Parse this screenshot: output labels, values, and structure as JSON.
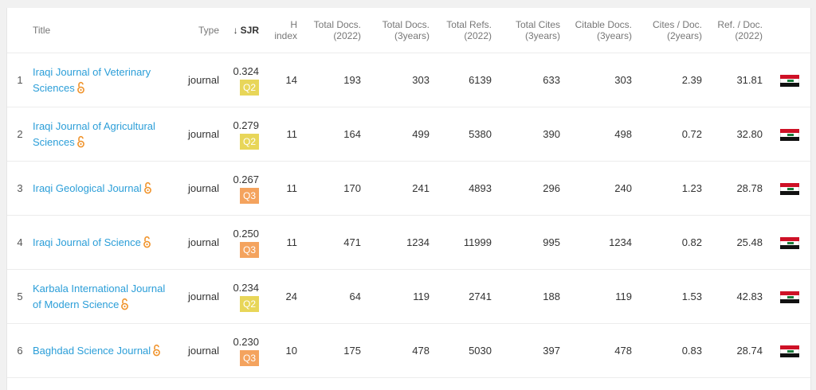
{
  "table": {
    "headers": {
      "title": "Title",
      "type": "Type",
      "sjr_arrow": "↓",
      "sjr": "SJR",
      "h_index": [
        "H",
        "index"
      ],
      "total_docs_2022": [
        "Total Docs.",
        "(2022)"
      ],
      "total_docs_3y": [
        "Total Docs.",
        "(3years)"
      ],
      "total_refs_2022": [
        "Total Refs.",
        "(2022)"
      ],
      "total_cites_3y": [
        "Total Cites",
        "(3years)"
      ],
      "citable_docs_3y": [
        "Citable Docs.",
        "(3years)"
      ],
      "cites_per_doc_2y": [
        "Cites / Doc.",
        "(2years)"
      ],
      "refs_per_doc_2022": [
        "Ref. / Doc.",
        "(2022)"
      ]
    },
    "rows": [
      {
        "rank": "1",
        "title_lines": [
          "Iraqi Journal of Veterinary",
          "Sciences"
        ],
        "type": "journal",
        "sjr": "0.324",
        "quartile": "Q2",
        "h_index": "14",
        "total_docs_2022": "193",
        "total_docs_3y": "303",
        "total_refs": "6139",
        "total_cites": "633",
        "citable_docs": "303",
        "cites_per_doc": "2.39",
        "refs_per_doc": "31.81",
        "flag": "iraq-flag-icon"
      },
      {
        "rank": "2",
        "title_lines": [
          "Iraqi Journal of Agricultural",
          "Sciences"
        ],
        "type": "journal",
        "sjr": "0.279",
        "quartile": "Q2",
        "h_index": "11",
        "total_docs_2022": "164",
        "total_docs_3y": "499",
        "total_refs": "5380",
        "total_cites": "390",
        "citable_docs": "498",
        "cites_per_doc": "0.72",
        "refs_per_doc": "32.80",
        "flag": "iraq-flag-icon"
      },
      {
        "rank": "3",
        "title_lines": [
          "Iraqi Geological Journal"
        ],
        "type": "journal",
        "sjr": "0.267",
        "quartile": "Q3",
        "h_index": "11",
        "total_docs_2022": "170",
        "total_docs_3y": "241",
        "total_refs": "4893",
        "total_cites": "296",
        "citable_docs": "240",
        "cites_per_doc": "1.23",
        "refs_per_doc": "28.78",
        "flag": "iraq-flag-icon"
      },
      {
        "rank": "4",
        "title_lines": [
          "Iraqi Journal of Science"
        ],
        "type": "journal",
        "sjr": "0.250",
        "quartile": "Q3",
        "h_index": "11",
        "total_docs_2022": "471",
        "total_docs_3y": "1234",
        "total_refs": "11999",
        "total_cites": "995",
        "citable_docs": "1234",
        "cites_per_doc": "0.82",
        "refs_per_doc": "25.48",
        "flag": "iraq-flag-icon"
      },
      {
        "rank": "5",
        "title_lines": [
          "Karbala International Journal",
          "of Modern Science"
        ],
        "type": "journal",
        "sjr": "0.234",
        "quartile": "Q2",
        "h_index": "24",
        "total_docs_2022": "64",
        "total_docs_3y": "119",
        "total_refs": "2741",
        "total_cites": "188",
        "citable_docs": "119",
        "cites_per_doc": "1.53",
        "refs_per_doc": "42.83",
        "flag": "iraq-flag-icon"
      },
      {
        "rank": "6",
        "title_lines": [
          "Baghdad Science Journal"
        ],
        "type": "journal",
        "sjr": "0.230",
        "quartile": "Q3",
        "h_index": "10",
        "total_docs_2022": "175",
        "total_docs_3y": "478",
        "total_refs": "5030",
        "total_cites": "397",
        "citable_docs": "478",
        "cites_per_doc": "0.83",
        "refs_per_doc": "28.74",
        "flag": "iraq-flag-icon"
      }
    ]
  },
  "colors": {
    "link": "#2b9ed8",
    "q2": "#e8d659",
    "q3": "#f4a35e",
    "open_access_icon": "#f0932b"
  }
}
